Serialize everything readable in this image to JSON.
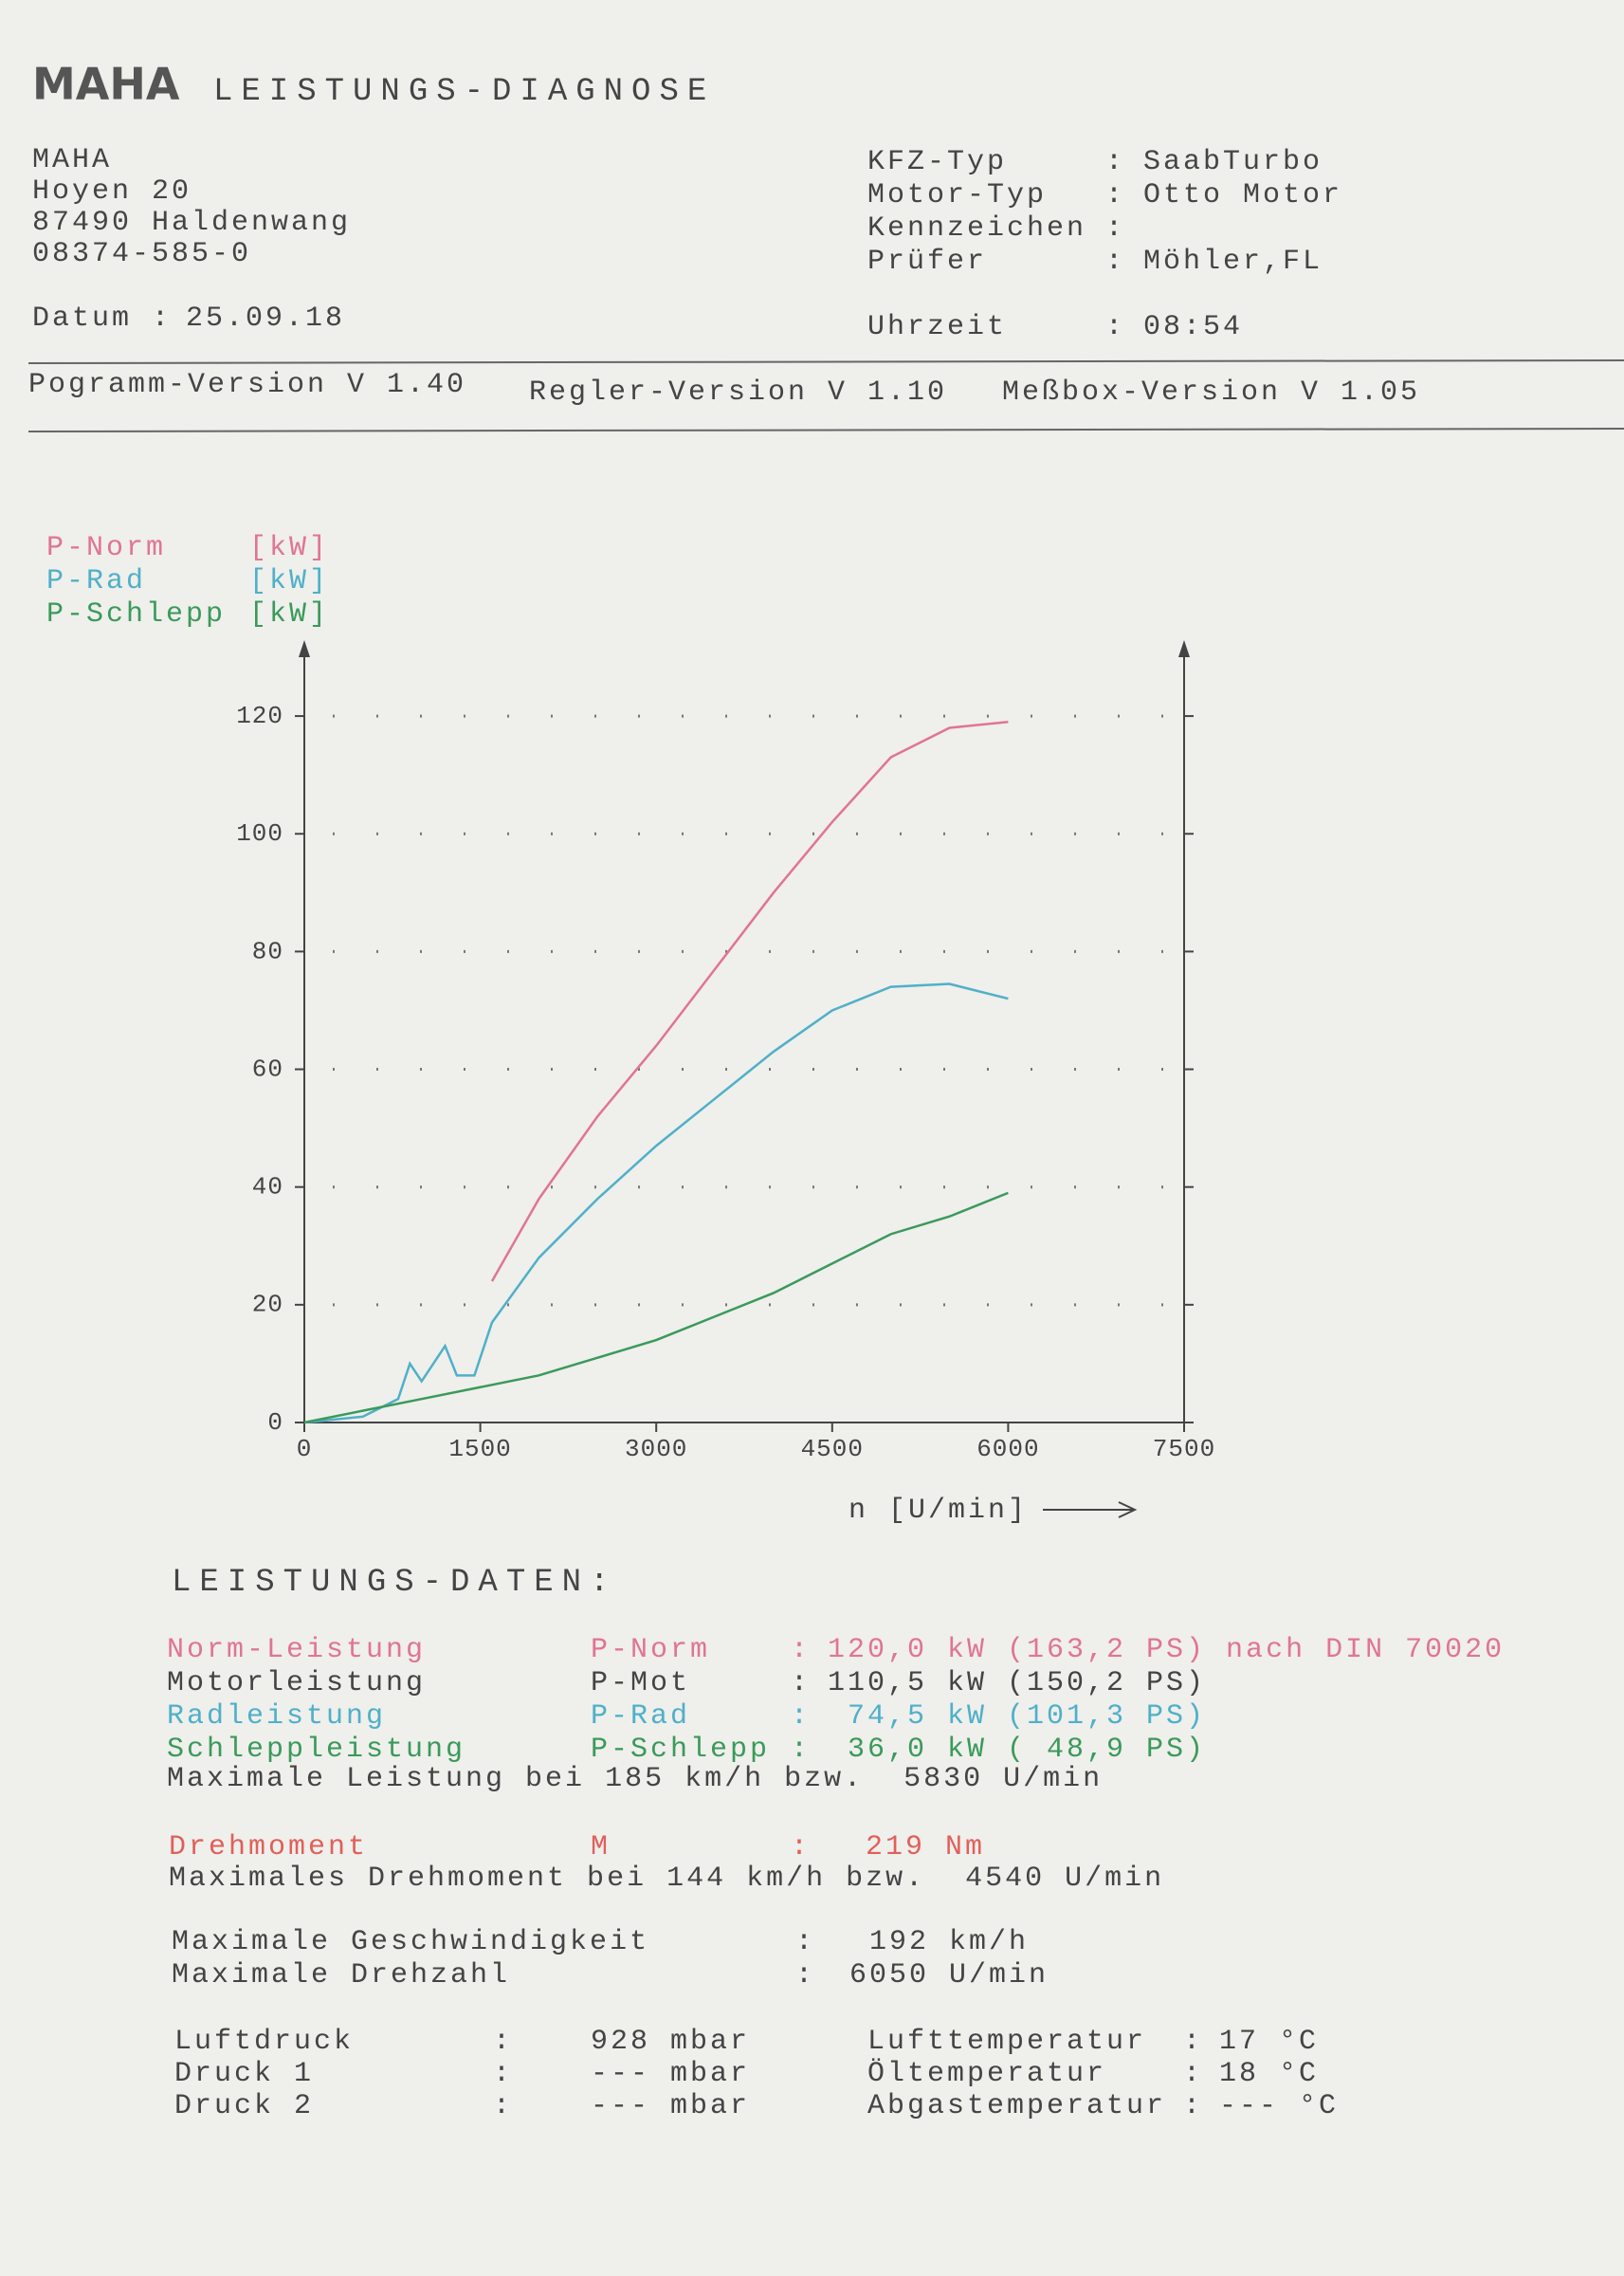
{
  "header": {
    "logo": "MAHA",
    "title": "LEISTUNGS-DIAGNOSE"
  },
  "address": [
    "MAHA",
    "Hoyen 20",
    "87490 Haldenwang",
    "08374-585-0"
  ],
  "datum": [
    "Datum",
    ":",
    "25.09.18"
  ],
  "vehicle": {
    "rows": [
      [
        "KFZ-Typ",
        ":",
        "SaabTurbo"
      ],
      [
        "Motor-Typ",
        ":",
        "Otto Motor"
      ],
      [
        "Kennzeichen",
        ":",
        ""
      ],
      [
        "Prüfer",
        ":",
        "Möhler,FL"
      ]
    ]
  },
  "uhrzeit": [
    "Uhrzeit",
    ":",
    "08:54"
  ],
  "versions": [
    "Pogramm-Version V 1.40",
    "Regler-Version V 1.10",
    "Meßbox-Version V 1.05"
  ],
  "chart_data": {
    "type": "line",
    "unit": "[kW]",
    "xlabel": "n [U/min]",
    "xlim": [
      0,
      7500
    ],
    "xticks": [
      0,
      1500,
      3000,
      4500,
      6000,
      7500
    ],
    "ylim": [
      0,
      130
    ],
    "yticks": [
      0,
      20,
      40,
      60,
      80,
      100,
      120
    ],
    "grid": true,
    "series": [
      {
        "name": "P-Norm",
        "color": "#e07593",
        "x": [
          1600,
          2000,
          2500,
          3000,
          3500,
          4000,
          4500,
          5000,
          5500,
          6000
        ],
        "values": [
          24,
          38,
          52,
          64,
          77,
          90,
          102,
          113,
          118,
          119
        ]
      },
      {
        "name": "P-Rad",
        "color": "#4fb0c8",
        "x": [
          0,
          500,
          800,
          900,
          1000,
          1200,
          1300,
          1450,
          1600,
          2000,
          2500,
          3000,
          3500,
          4000,
          4500,
          5000,
          5500,
          6000
        ],
        "values": [
          0,
          1,
          4,
          10,
          7,
          13,
          8,
          8,
          17,
          28,
          38,
          47,
          55,
          63,
          70,
          74,
          74.5,
          72
        ]
      },
      {
        "name": "P-Schlepp",
        "color": "#3a9a5a",
        "x": [
          0,
          1000,
          1500,
          2000,
          2500,
          3000,
          3500,
          4000,
          4500,
          5000,
          5500,
          6000
        ],
        "values": [
          0,
          4,
          6,
          8,
          11,
          14,
          18,
          22,
          27,
          32,
          35,
          39
        ]
      }
    ]
  },
  "leistung": {
    "title": "LEISTUNGS-DATEN:",
    "rows": [
      [
        "Norm-Leistung",
        "P-Norm",
        ":",
        "120,0 kW (163,2 PS) nach DIN 70020"
      ],
      [
        "Motorleistung",
        "P-Mot",
        ":",
        "110,5 kW (150,2 PS)"
      ],
      [
        "Radleistung",
        "P-Rad",
        ":",
        " 74,5 kW (101,3 PS)"
      ],
      [
        "Schleppleistung",
        "P-Schlepp",
        ":",
        " 36,0 kW ( 48,9 PS)"
      ]
    ],
    "max_power": "Maximale Leistung bei 185 km/h bzw.  5830 U/min"
  },
  "torque": {
    "row": [
      "Drehmoment",
      "M",
      ":",
      "219 Nm"
    ],
    "max": "Maximales Drehmoment bei 144 km/h bzw.  4540 U/min"
  },
  "maxima": {
    "rows": [
      [
        "Maximale Geschwindigkeit",
        ":",
        " 192 km/h"
      ],
      [
        "Maximale Drehzahl",
        ":",
        "6050 U/min"
      ]
    ]
  },
  "ambient": {
    "rows": [
      [
        "Luftdruck",
        ":",
        "928 mbar",
        "Lufttemperatur",
        ":",
        "17 °C"
      ],
      [
        "Druck 1",
        ":",
        "--- mbar",
        "Öltemperatur",
        ":",
        "18 °C"
      ],
      [
        "Druck 2",
        ":",
        "--- mbar",
        "Abgastemperatur",
        ":",
        "--- °C"
      ]
    ]
  }
}
